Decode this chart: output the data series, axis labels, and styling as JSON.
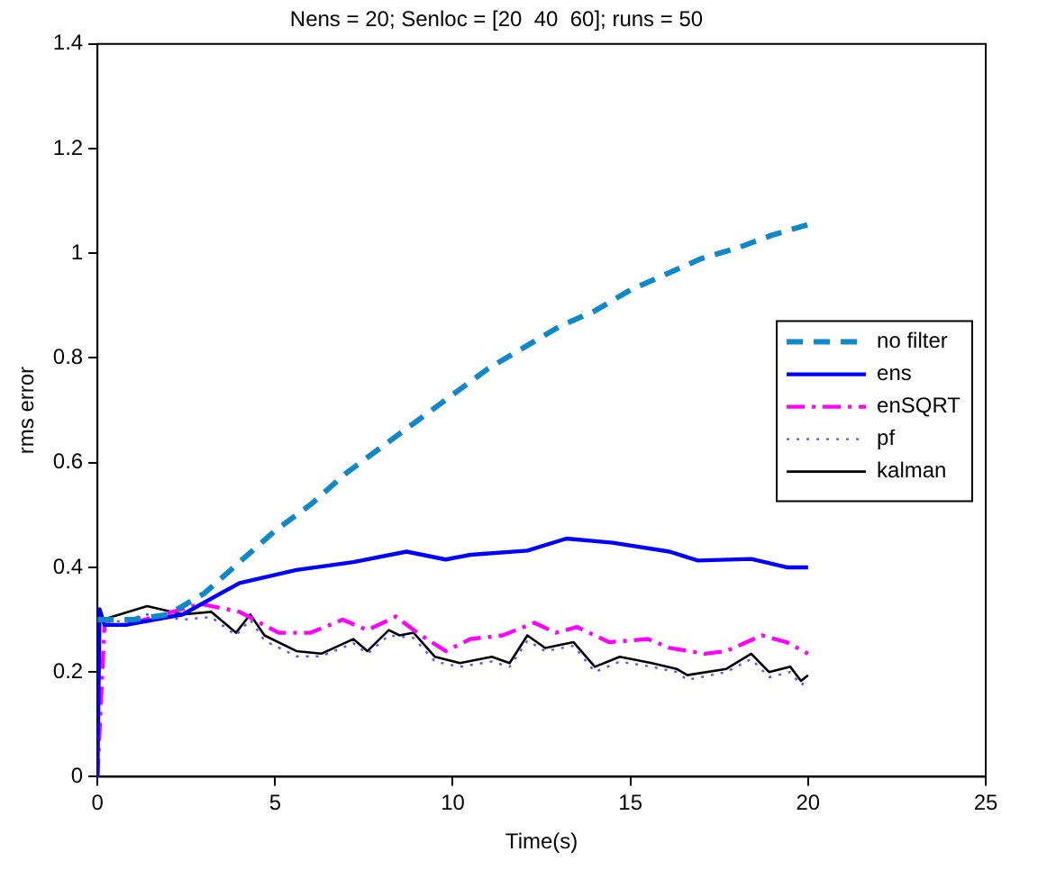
{
  "chart_data": {
    "type": "line",
    "title": "Nens = 20; Senloc = [20  40  60]; runs = 50",
    "xlabel": "Time(s)",
    "ylabel": "rms error",
    "xlim": [
      0,
      25
    ],
    "xticks": [
      0,
      5,
      10,
      15,
      20,
      25
    ],
    "ylim": [
      0,
      1.4
    ],
    "yticks": [
      0,
      0.2,
      0.4,
      0.6,
      0.8,
      1,
      1.2,
      1.4
    ],
    "grid": false,
    "legend": "right",
    "marker": "none",
    "series": [
      {
        "name": "no filter",
        "color": "#0e88c8",
        "line_style": "dashed",
        "x": [
          0,
          1,
          2,
          3,
          4,
          5,
          6,
          7,
          8,
          9,
          10,
          11,
          12,
          13,
          14,
          15,
          16,
          17,
          18,
          19,
          20
        ],
        "values": [
          0.3,
          0.3,
          0.31,
          0.35,
          0.41,
          0.47,
          0.52,
          0.58,
          0.63,
          0.68,
          0.73,
          0.78,
          0.82,
          0.86,
          0.89,
          0.93,
          0.96,
          0.99,
          1.01,
          1.035,
          1.055
        ]
      },
      {
        "name": "ens",
        "color": "#0000ff",
        "line_style": "solid",
        "x": [
          0,
          0.06,
          0.2,
          0.8,
          2.4,
          4,
          5.6,
          7.2,
          8.7,
          9.8,
          10.5,
          12.1,
          13.2,
          14.5,
          16.1,
          16.9,
          18.4,
          19.4,
          20
        ],
        "values": [
          0,
          0.32,
          0.29,
          0.29,
          0.31,
          0.37,
          0.395,
          0.41,
          0.43,
          0.415,
          0.424,
          0.432,
          0.455,
          0.447,
          0.43,
          0.413,
          0.416,
          0.4,
          0.4
        ]
      },
      {
        "name": "enSQRT",
        "color": "#ff00ff",
        "line_style": "dashdot",
        "x": [
          0,
          0.2,
          0.8,
          2.9,
          4,
          5.1,
          6,
          6.9,
          7.6,
          8.4,
          9,
          9.8,
          10.5,
          11.4,
          12.3,
          12.9,
          13.5,
          14.4,
          15.5,
          16.1,
          17.1,
          17.7,
          18.7,
          19.4,
          20
        ],
        "values": [
          0,
          0.29,
          0.29,
          0.33,
          0.315,
          0.275,
          0.275,
          0.3,
          0.28,
          0.306,
          0.275,
          0.24,
          0.263,
          0.27,
          0.294,
          0.275,
          0.286,
          0.257,
          0.263,
          0.246,
          0.235,
          0.24,
          0.27,
          0.257,
          0.235
        ]
      },
      {
        "name": "pf",
        "color": "#5555ff",
        "line_style": "dotted",
        "x": [
          0,
          0.05,
          0.15,
          1.4,
          2.4,
          3.2,
          3.9,
          4.3,
          4.7,
          5.6,
          6.3,
          7.2,
          7.6,
          8.2,
          8.9,
          9.5,
          10.2,
          11.1,
          11.6,
          12.1,
          12.6,
          13.4,
          14,
          14.7,
          15.6,
          16.3,
          16.6,
          17.7,
          18.4,
          18.9,
          19.5,
          19.8,
          20
        ],
        "values": [
          0,
          0.32,
          0.29,
          0.31,
          0.3,
          0.305,
          0.27,
          0.3,
          0.26,
          0.23,
          0.23,
          0.255,
          0.235,
          0.27,
          0.265,
          0.22,
          0.21,
          0.22,
          0.21,
          0.26,
          0.24,
          0.25,
          0.2,
          0.22,
          0.21,
          0.2,
          0.185,
          0.2,
          0.225,
          0.19,
          0.2,
          0.175,
          0.185
        ]
      },
      {
        "name": "kalman",
        "color": "#000000",
        "line_style": "solid",
        "x": [
          0,
          0.05,
          0.15,
          1.4,
          2.4,
          3.2,
          3.9,
          4.3,
          4.7,
          5.6,
          6.3,
          7.2,
          7.6,
          8.2,
          8.5,
          8.9,
          9.5,
          10.2,
          11.1,
          11.6,
          12.1,
          12.6,
          13.4,
          14,
          14.7,
          15.6,
          16.3,
          16.6,
          17.7,
          18.4,
          18.9,
          19.5,
          19.8,
          20
        ],
        "values": [
          0,
          0.3,
          0.3,
          0.326,
          0.31,
          0.315,
          0.275,
          0.31,
          0.27,
          0.24,
          0.235,
          0.263,
          0.24,
          0.28,
          0.27,
          0.275,
          0.229,
          0.217,
          0.229,
          0.217,
          0.27,
          0.246,
          0.257,
          0.21,
          0.229,
          0.217,
          0.206,
          0.194,
          0.206,
          0.235,
          0.2,
          0.21,
          0.183,
          0.194
        ]
      }
    ]
  }
}
